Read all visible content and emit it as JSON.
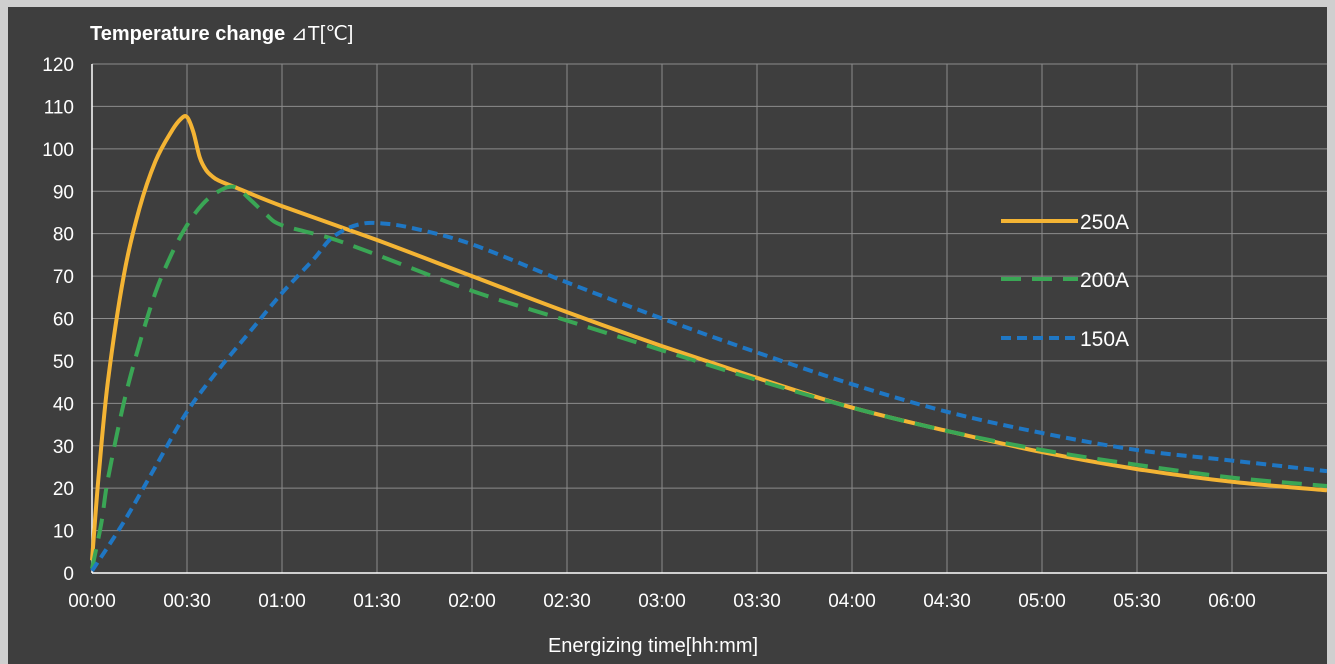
{
  "chart_data": {
    "type": "line",
    "title_bold": "Temperature change",
    "title_rest": " ⊿T[℃]",
    "xlabel": "Energizing time[hh:mm]",
    "ylabel": "Temperature change ⊿T[℃]",
    "x_unit": "minutes",
    "xlim": [
      0,
      390
    ],
    "ylim": [
      0,
      120
    ],
    "x_ticks": [
      0,
      30,
      60,
      90,
      120,
      150,
      180,
      210,
      240,
      270,
      300,
      330,
      360
    ],
    "x_tick_labels": [
      "00:00",
      "00:30",
      "01:00",
      "01:30",
      "02:00",
      "02:30",
      "03:00",
      "03:30",
      "04:00",
      "04:30",
      "05:00",
      "05:30",
      "06:00"
    ],
    "y_ticks": [
      0,
      10,
      20,
      30,
      40,
      50,
      60,
      70,
      80,
      90,
      100,
      110,
      120
    ],
    "y_tick_labels": [
      "0",
      "10",
      "20",
      "30",
      "40",
      "50",
      "60",
      "70",
      "80",
      "90",
      "100",
      "110",
      "120"
    ],
    "grid": true,
    "legend_position": "right",
    "series": [
      {
        "name": "250A",
        "color": "#f4b434",
        "dash": "solid",
        "x": [
          0,
          2,
          5,
          10,
          15,
          20,
          25,
          28,
          30,
          32,
          34,
          36,
          38,
          40,
          45,
          60,
          90,
          120,
          150,
          180,
          210,
          240,
          270,
          300,
          330,
          360,
          390
        ],
        "y": [
          3,
          22,
          45,
          70,
          86,
          97,
          104,
          107,
          107.5,
          104,
          98,
          95,
          93.5,
          92.5,
          91,
          86.5,
          78.5,
          70,
          61.5,
          53.5,
          46,
          39,
          33.5,
          28.5,
          24.5,
          21.5,
          19.5
        ]
      },
      {
        "name": "200A",
        "color": "#3aa655",
        "dash": "dashed",
        "x": [
          0,
          3,
          5,
          10,
          15,
          20,
          25,
          30,
          35,
          40,
          45,
          50,
          55,
          60,
          75,
          90,
          120,
          150,
          180,
          210,
          240,
          270,
          300,
          330,
          360,
          390
        ],
        "y": [
          1,
          12,
          22,
          40,
          54,
          66,
          75,
          82,
          87,
          90,
          91,
          88,
          84.5,
          82,
          79,
          75,
          66.5,
          59.5,
          52.5,
          45.5,
          39,
          33.5,
          29,
          25.5,
          22.5,
          20.5
        ]
      },
      {
        "name": "150A",
        "color": "#1f77c4",
        "dash": "dotted",
        "x": [
          0,
          10,
          20,
          30,
          40,
          50,
          60,
          70,
          75,
          80,
          85,
          90,
          100,
          120,
          150,
          180,
          210,
          240,
          270,
          300,
          330,
          360,
          390
        ],
        "y": [
          0.5,
          12,
          25,
          38,
          48,
          57,
          66,
          74,
          78.5,
          81,
          82.3,
          82.5,
          81.5,
          77.5,
          68.5,
          60,
          52,
          44.5,
          38,
          33,
          29,
          26.5,
          24
        ]
      }
    ]
  }
}
